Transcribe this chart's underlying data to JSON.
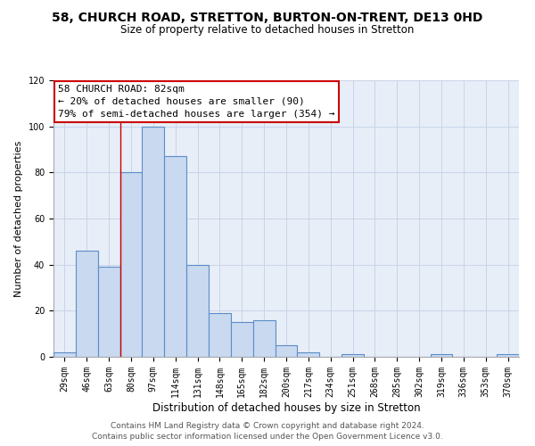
{
  "title1": "58, CHURCH ROAD, STRETTON, BURTON-ON-TRENT, DE13 0HD",
  "title2": "Size of property relative to detached houses in Stretton",
  "xlabel": "Distribution of detached houses by size in Stretton",
  "ylabel": "Number of detached properties",
  "categories": [
    "29sqm",
    "46sqm",
    "63sqm",
    "80sqm",
    "97sqm",
    "114sqm",
    "131sqm",
    "148sqm",
    "165sqm",
    "182sqm",
    "200sqm",
    "217sqm",
    "234sqm",
    "251sqm",
    "268sqm",
    "285sqm",
    "302sqm",
    "319sqm",
    "336sqm",
    "353sqm",
    "370sqm"
  ],
  "values": [
    2,
    46,
    39,
    80,
    100,
    87,
    40,
    19,
    15,
    16,
    5,
    2,
    0,
    1,
    0,
    0,
    0,
    1,
    0,
    0,
    1
  ],
  "bar_color": "#c9d9f0",
  "bar_edge_color": "#5b8dc8",
  "ylim": [
    0,
    120
  ],
  "yticks": [
    0,
    20,
    40,
    60,
    80,
    100,
    120
  ],
  "annotation_box_text": "58 CHURCH ROAD: 82sqm\n← 20% of detached houses are smaller (90)\n79% of semi-detached houses are larger (354) →",
  "box_edge_color": "#cc0000",
  "box_face_color": "#ffffff",
  "footnote1": "Contains HM Land Registry data © Crown copyright and database right 2024.",
  "footnote2": "Contains public sector information licensed under the Open Government Licence v3.0.",
  "title1_fontsize": 10,
  "title2_fontsize": 8.5,
  "xlabel_fontsize": 8.5,
  "ylabel_fontsize": 8,
  "tick_fontsize": 7,
  "annotation_fontsize": 8,
  "footnote_fontsize": 6.5,
  "bg_color": "#e8eef8",
  "grid_color": "#c8d4e8"
}
